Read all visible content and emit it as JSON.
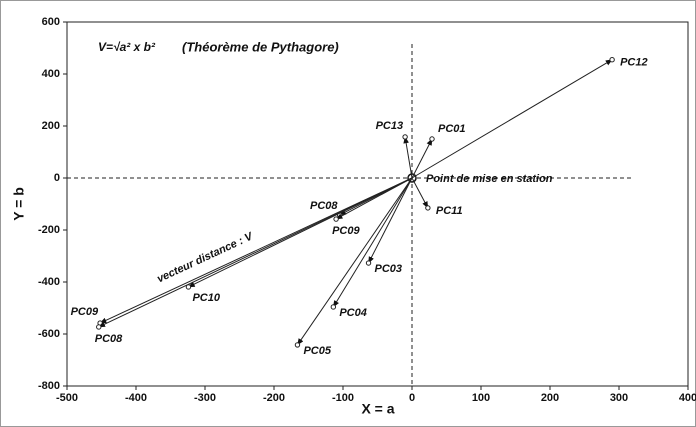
{
  "chart_data": {
    "type": "scatter",
    "title": "V=√a² x b²",
    "subtitle": "(Théorème de Pythagore)",
    "x_label": "X = a",
    "y_label": "Y = b",
    "annotations": [
      "Point de mise en station",
      "vecteur distance : V"
    ],
    "origin": [
      0,
      0
    ],
    "point_labels": [
      "PC12",
      "PC13",
      "PC01",
      "PC11",
      "PC08",
      "PC09",
      "PC03",
      "PC04",
      "PC05",
      "PC10",
      "PC09",
      "PC08"
    ],
    "x": [
      290,
      -10,
      29,
      23,
      -105,
      -110,
      -63,
      -114,
      -166,
      -324,
      -452,
      -454
    ],
    "values": [
      455,
      158,
      150,
      -115,
      -142,
      -158,
      -327,
      -496,
      -642,
      -419,
      -558,
      -573
    ],
    "color": "#222",
    "xlim": [
      -500,
      400
    ],
    "xticks": [
      -500,
      -400,
      -300,
      -200,
      -100,
      0,
      100,
      200,
      300,
      400
    ],
    "ylim": [
      -800,
      600
    ],
    "yticks": [
      -800,
      -600,
      -400,
      -200,
      0,
      200,
      400,
      600
    ]
  }
}
